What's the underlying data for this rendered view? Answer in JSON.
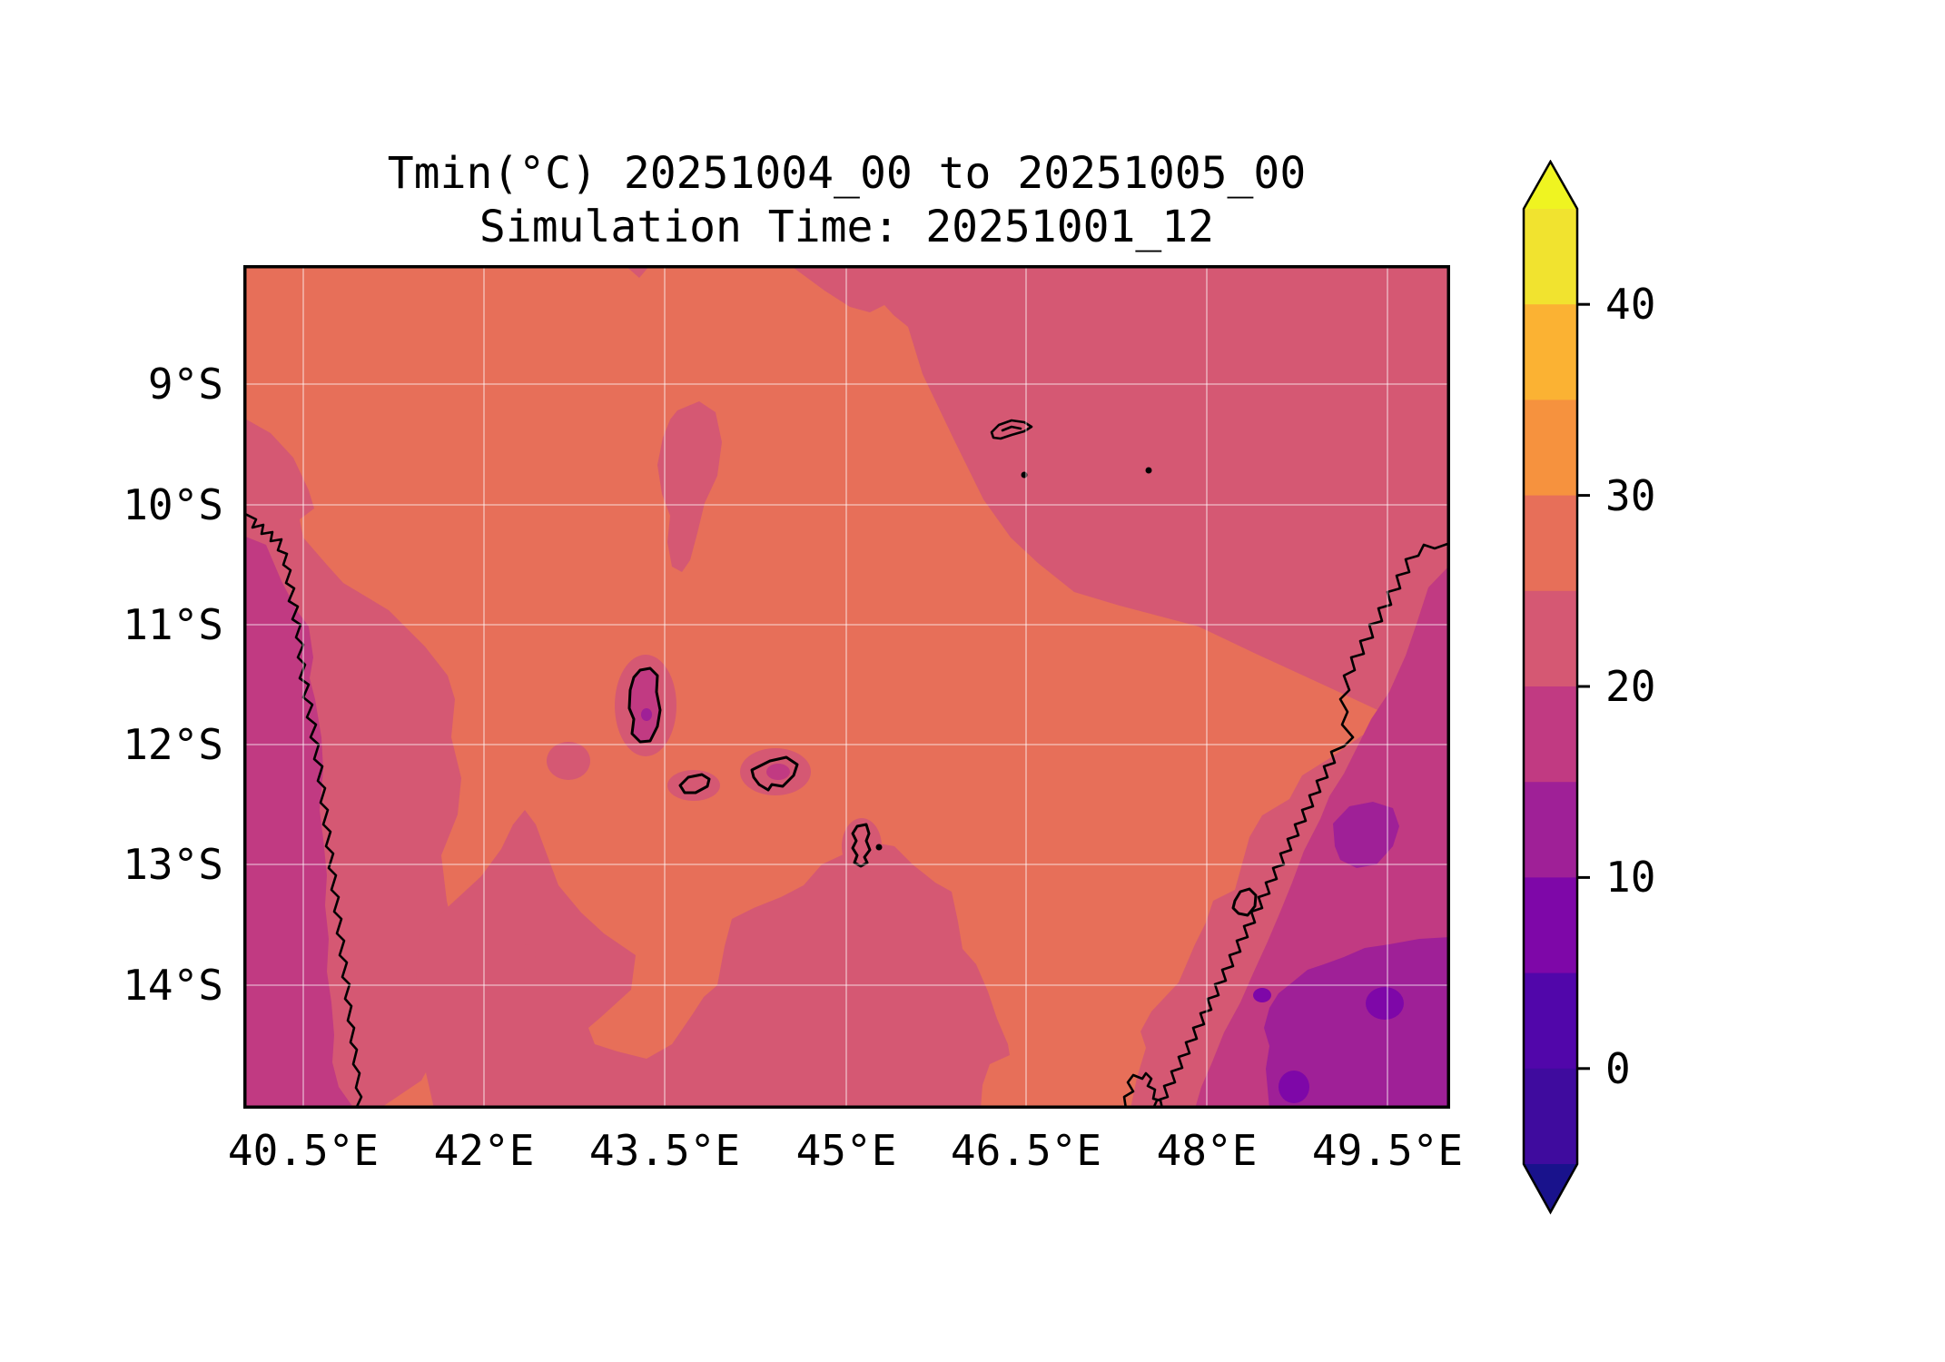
{
  "figure": {
    "title_line1": "Tmin(°C) 20251004_00 to 20251005_00",
    "title_line2": "Simulation Time: 20251001_12"
  },
  "axes": {
    "x_tick_labels": [
      "40.5°E",
      "42°E",
      "43.5°E",
      "45°E",
      "46.5°E",
      "48°E",
      "49.5°E"
    ],
    "y_tick_labels": [
      "9°S",
      "10°S",
      "11°S",
      "12°S",
      "13°S",
      "14°S"
    ]
  },
  "colorbar": {
    "tick_labels": [
      "40",
      "30",
      "20",
      "10",
      "0"
    ],
    "tick_values": [
      40,
      30,
      20,
      10,
      0
    ],
    "value_min": -5,
    "value_max": 45,
    "over_range": ">45",
    "under_range": "<-5",
    "bands_top_to_bottom": [
      "40-45",
      "35-40",
      "30-35",
      "25-30",
      "20-25",
      "15-20",
      "10-15",
      "5-10",
      "0-5",
      "-5-0"
    ]
  },
  "palette": {
    "gt45": "#eff421",
    "t40_45": "#f1e32f",
    "t35_40": "#fbb233",
    "t30_35": "#f6923e",
    "t25_30": "#e76f59",
    "t20_25": "#d55873",
    "t15_20": "#c13a82",
    "t10_15": "#9f2097",
    "t5_10": "#7e07a8",
    "t0_5": "#5106aa",
    "tm5_0": "#3f0b9e",
    "ltm5": "#19128c"
  },
  "chart_data": {
    "type": "heatmap",
    "subtype": "filled_contour_map",
    "title": "Tmin(°C) 20251004_00 to 20251005_00",
    "subtitle": "Simulation Time: 20251001_12",
    "variable": "Tmin",
    "units": "°C",
    "valid_period": "20251004_00 to 20251005_00",
    "simulation_time": "20251001_12",
    "lon_range_deg_e": [
      40,
      50
    ],
    "lat_range_deg_s": [
      8,
      15
    ],
    "contour_levels": [
      -5,
      0,
      5,
      10,
      15,
      20,
      25,
      30,
      35,
      40,
      45
    ],
    "colormap": "plasma (discrete bands)",
    "overlay": "black coastline contours (East Africa coast, Comoros islands, Mayotte, Glorioso, Nosy Be, northern Madagascar)",
    "grid_on": true,
    "legend_position": "right colorbar with over/under arrows",
    "grid_lon_deg_e": [
      40,
      41,
      42,
      43,
      44,
      45,
      46,
      47,
      48,
      49,
      50
    ],
    "grid_lat_deg_s": [
      8,
      9,
      10,
      11,
      12,
      13,
      14,
      15
    ],
    "values_estimated": true,
    "values_tmin_c": [
      [
        27,
        27,
        27,
        27,
        27,
        23,
        23,
        23,
        23,
        23,
        23
      ],
      [
        27,
        27,
        27,
        27,
        27,
        27,
        23,
        23,
        23,
        23,
        23
      ],
      [
        23,
        27,
        27,
        24,
        27,
        27,
        27,
        23,
        23,
        23,
        23
      ],
      [
        17,
        23,
        27,
        27,
        27,
        27,
        27,
        27,
        23,
        23,
        23
      ],
      [
        17,
        23,
        27,
        24,
        27,
        27,
        27,
        27,
        27,
        23,
        17
      ],
      [
        17,
        23,
        27,
        27,
        23,
        23,
        23,
        27,
        27,
        17,
        13
      ],
      [
        17,
        23,
        27,
        27,
        23,
        23,
        23,
        27,
        23,
        13,
        13
      ],
      [
        17,
        23,
        27,
        27,
        23,
        23,
        27,
        27,
        23,
        13,
        13
      ]
    ]
  }
}
